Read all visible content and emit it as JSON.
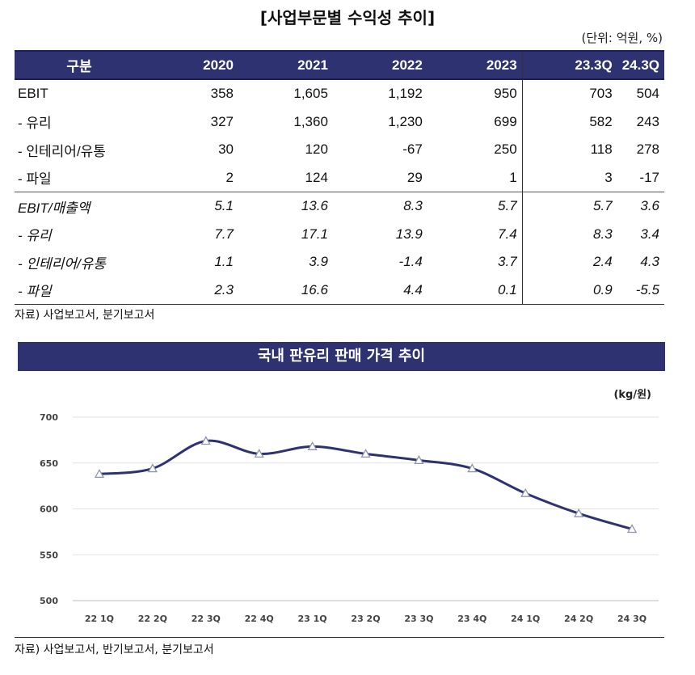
{
  "table_title": "[사업부문별 수익성 추이]",
  "unit_note": "(단위: 억원, %)",
  "table": {
    "headers": [
      "구분",
      "2020",
      "2021",
      "2022",
      "2023",
      "23.3Q",
      "24.3Q"
    ],
    "rows": [
      [
        "EBIT",
        "358",
        "1,605",
        "1,192",
        "950",
        "703",
        "504"
      ],
      [
        "- 유리",
        "327",
        "1,360",
        "1,230",
        "699",
        "582",
        "243"
      ],
      [
        "- 인테리어/유통",
        "30",
        "120",
        "-67",
        "250",
        "118",
        "278"
      ],
      [
        "- 파일",
        "2",
        "124",
        "29",
        "1",
        "3",
        "-17"
      ],
      [
        "EBIT/매출액",
        "5.1",
        "13.6",
        "8.3",
        "5.7",
        "5.7",
        "3.6"
      ],
      [
        " - 유리",
        "7.7",
        "17.1",
        "13.9",
        "7.4",
        "8.3",
        "3.4"
      ],
      [
        " - 인테리어/유통",
        "1.1",
        "3.9",
        "-1.4",
        "3.7",
        "2.4",
        "4.3"
      ],
      [
        " - 파일",
        "2.3",
        "16.6",
        "4.4",
        "0.1",
        "0.9",
        "-5.5"
      ]
    ]
  },
  "table_source": "자료) 사업보고서, 분기보고서",
  "chart_source": "자료) 사업보고서, 반기보고서, 분기보고서",
  "chart_data": {
    "type": "line",
    "title": "국내 판유리 판매 가격 추이",
    "unit_label": "(kg/원)",
    "categories": [
      "22 1Q",
      "22 2Q",
      "22 3Q",
      "22 4Q",
      "23 1Q",
      "23 2Q",
      "23 3Q",
      "23 4Q",
      "24 1Q",
      "24 2Q",
      "24 3Q"
    ],
    "series": [
      {
        "values": [
          638,
          644,
          674,
          660,
          668,
          660,
          653,
          644,
          617,
          595,
          578
        ]
      }
    ],
    "ylim": [
      500,
      700
    ],
    "yticks": [
      500,
      550,
      600,
      650,
      700
    ],
    "grid": true,
    "line_color": "#2f3270"
  }
}
